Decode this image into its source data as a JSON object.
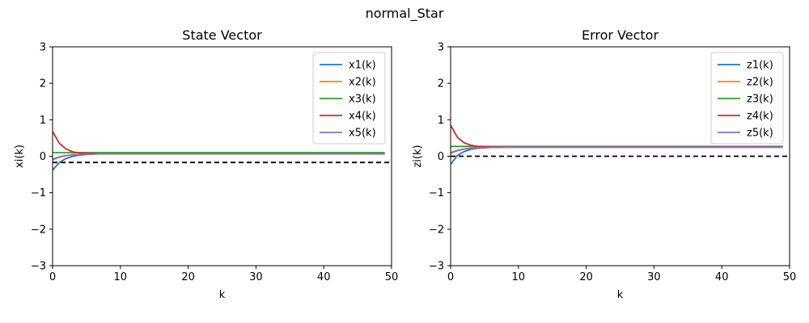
{
  "figure": {
    "suptitle": "normal_Star"
  },
  "chart_data": [
    {
      "type": "line",
      "title": "State Vector",
      "xlabel": "k",
      "ylabel": "xi(k)",
      "xlim": [
        0,
        50
      ],
      "ylim": [
        -3,
        3
      ],
      "xticks": [
        "0",
        "10",
        "20",
        "30",
        "40",
        "50"
      ],
      "yticks": [
        "−3",
        "−2",
        "−1",
        "0",
        "1",
        "2",
        "3"
      ],
      "grid": false,
      "legend_position": "top-right",
      "reference_line": {
        "y": -0.17,
        "style": "dashed",
        "color": "#000000"
      },
      "series": [
        {
          "name": "x1(k)",
          "color": "#1f77b4",
          "x": [
            0,
            1,
            2,
            3,
            4,
            5,
            6,
            7,
            8,
            10,
            15,
            20,
            30,
            40,
            49
          ],
          "values": [
            -0.38,
            -0.17,
            -0.06,
            0.0,
            0.03,
            0.05,
            0.06,
            0.07,
            0.07,
            0.07,
            0.07,
            0.07,
            0.07,
            0.07,
            0.07
          ]
        },
        {
          "name": "x2(k)",
          "color": "#ff7f0e",
          "x": [
            0,
            1,
            2,
            3,
            4,
            5,
            6,
            7,
            8,
            10,
            15,
            20,
            30,
            40,
            49
          ],
          "values": [
            -0.1,
            -0.02,
            0.02,
            0.04,
            0.05,
            0.06,
            0.06,
            0.07,
            0.07,
            0.07,
            0.07,
            0.07,
            0.07,
            0.07,
            0.07
          ]
        },
        {
          "name": "x3(k)",
          "color": "#2ca02c",
          "x": [
            0,
            1,
            2,
            3,
            4,
            5,
            6,
            7,
            8,
            10,
            15,
            20,
            30,
            40,
            49
          ],
          "values": [
            0.1,
            0.1,
            0.1,
            0.1,
            0.1,
            0.1,
            0.1,
            0.1,
            0.1,
            0.1,
            0.1,
            0.1,
            0.1,
            0.1,
            0.1
          ]
        },
        {
          "name": "x4(k)",
          "color": "#d62728",
          "x": [
            0,
            1,
            2,
            3,
            4,
            5,
            6,
            7,
            8,
            10,
            15,
            20,
            30,
            40,
            49
          ],
          "values": [
            0.68,
            0.35,
            0.2,
            0.12,
            0.09,
            0.08,
            0.08,
            0.07,
            0.07,
            0.07,
            0.07,
            0.07,
            0.07,
            0.07,
            0.07
          ]
        },
        {
          "name": "x5(k)",
          "color": "#9467bd",
          "x": [
            0,
            1,
            2,
            3,
            4,
            5,
            6,
            7,
            8,
            10,
            15,
            20,
            30,
            40,
            49
          ],
          "values": [
            -0.08,
            -0.02,
            0.02,
            0.04,
            0.05,
            0.06,
            0.06,
            0.07,
            0.07,
            0.07,
            0.07,
            0.07,
            0.07,
            0.07,
            0.07
          ]
        }
      ]
    },
    {
      "type": "line",
      "title": "Error Vector",
      "xlabel": "k",
      "ylabel": "zi(k)",
      "xlim": [
        0,
        50
      ],
      "ylim": [
        -3,
        3
      ],
      "xticks": [
        "0",
        "10",
        "20",
        "30",
        "40",
        "50"
      ],
      "yticks": [
        "−3",
        "−2",
        "−1",
        "0",
        "1",
        "2",
        "3"
      ],
      "grid": false,
      "legend_position": "top-right",
      "reference_line": {
        "y": 0.0,
        "style": "dashed",
        "color": "#000000"
      },
      "series": [
        {
          "name": "z1(k)",
          "color": "#1f77b4",
          "x": [
            0,
            1,
            2,
            3,
            4,
            5,
            6,
            7,
            8,
            10,
            15,
            20,
            30,
            40,
            49
          ],
          "values": [
            -0.22,
            0.02,
            0.13,
            0.19,
            0.22,
            0.23,
            0.24,
            0.24,
            0.25,
            0.25,
            0.25,
            0.25,
            0.25,
            0.25,
            0.25
          ]
        },
        {
          "name": "z2(k)",
          "color": "#ff7f0e",
          "x": [
            0,
            1,
            2,
            3,
            4,
            5,
            6,
            7,
            8,
            10,
            15,
            20,
            30,
            40,
            49
          ],
          "values": [
            0.08,
            0.15,
            0.2,
            0.22,
            0.23,
            0.24,
            0.24,
            0.25,
            0.25,
            0.25,
            0.25,
            0.25,
            0.25,
            0.25,
            0.25
          ]
        },
        {
          "name": "z3(k)",
          "color": "#2ca02c",
          "x": [
            0,
            1,
            2,
            3,
            4,
            5,
            6,
            7,
            8,
            10,
            15,
            20,
            30,
            40,
            49
          ],
          "values": [
            0.27,
            0.27,
            0.27,
            0.27,
            0.27,
            0.27,
            0.27,
            0.27,
            0.27,
            0.27,
            0.27,
            0.27,
            0.27,
            0.27,
            0.27
          ]
        },
        {
          "name": "z4(k)",
          "color": "#d62728",
          "x": [
            0,
            1,
            2,
            3,
            4,
            5,
            6,
            7,
            8,
            10,
            15,
            20,
            30,
            40,
            49
          ],
          "values": [
            0.85,
            0.52,
            0.37,
            0.3,
            0.27,
            0.26,
            0.25,
            0.25,
            0.25,
            0.25,
            0.25,
            0.25,
            0.25,
            0.25,
            0.25
          ]
        },
        {
          "name": "z5(k)",
          "color": "#9467bd",
          "x": [
            0,
            1,
            2,
            3,
            4,
            5,
            6,
            7,
            8,
            10,
            15,
            20,
            30,
            40,
            49
          ],
          "values": [
            0.1,
            0.16,
            0.2,
            0.22,
            0.23,
            0.24,
            0.24,
            0.25,
            0.25,
            0.25,
            0.25,
            0.25,
            0.25,
            0.25,
            0.25
          ]
        }
      ]
    }
  ]
}
